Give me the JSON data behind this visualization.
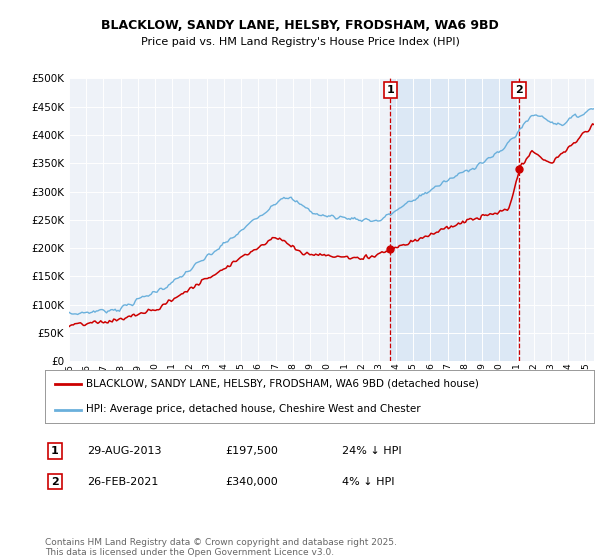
{
  "title1": "BLACKLOW, SANDY LANE, HELSBY, FRODSHAM, WA6 9BD",
  "title2": "Price paid vs. HM Land Registry's House Price Index (HPI)",
  "ylabel_ticks": [
    "£0",
    "£50K",
    "£100K",
    "£150K",
    "£200K",
    "£250K",
    "£300K",
    "£350K",
    "£400K",
    "£450K",
    "£500K"
  ],
  "ytick_vals": [
    0,
    50000,
    100000,
    150000,
    200000,
    250000,
    300000,
    350000,
    400000,
    450000,
    500000
  ],
  "year_start": 1995,
  "year_end": 2025,
  "sale1_year": 2013.66,
  "sale1_label": "1",
  "sale1_date": "29-AUG-2013",
  "sale1_price": "£197,500",
  "sale1_hpi": "24% ↓ HPI",
  "sale2_year": 2021.15,
  "sale2_label": "2",
  "sale2_date": "26-FEB-2021",
  "sale2_price": "£340,000",
  "sale2_hpi": "4% ↓ HPI",
  "line_color_property": "#cc0000",
  "line_color_hpi": "#6ab0dc",
  "legend_label1": "BLACKLOW, SANDY LANE, HELSBY, FRODSHAM, WA6 9BD (detached house)",
  "legend_label2": "HPI: Average price, detached house, Cheshire West and Chester",
  "footer": "Contains HM Land Registry data © Crown copyright and database right 2025.\nThis data is licensed under the Open Government Licence v3.0.",
  "background_color": "#ffffff",
  "plot_bg_color": "#eef2f8",
  "vline_color": "#cc0000",
  "highlight_bg": "#dce8f5"
}
